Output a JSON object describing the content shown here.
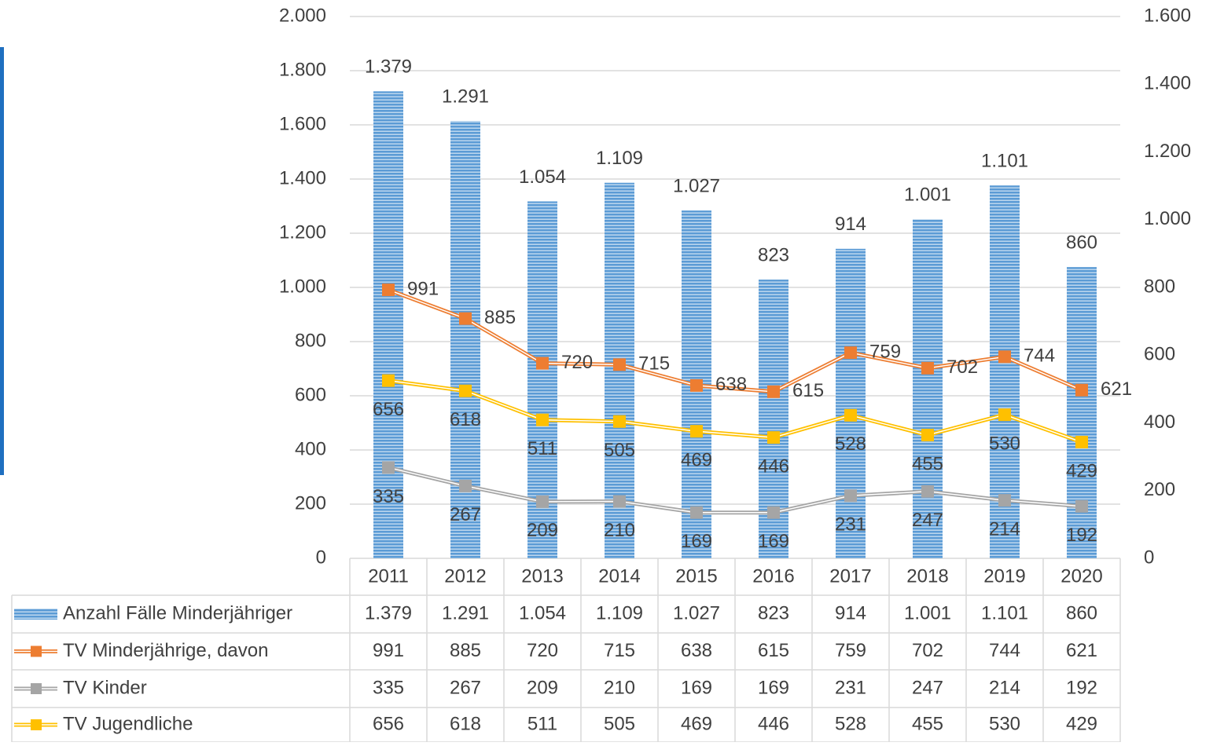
{
  "chart_data": {
    "type": "bar",
    "categories": [
      "2011",
      "2012",
      "2013",
      "2014",
      "2015",
      "2016",
      "2017",
      "2018",
      "2019",
      "2020"
    ],
    "ylim": [
      0,
      2000
    ],
    "yticks": [
      0,
      200,
      400,
      600,
      800,
      {
        "value": 1000,
        "label": "1.000"
      },
      {
        "value": 1200,
        "label": "1.200"
      },
      {
        "value": 1400,
        "label": "1.400"
      },
      {
        "value": 1600,
        "label": "1.600"
      },
      {
        "value": 1800,
        "label": "1.800"
      },
      {
        "value": 2000,
        "label": "2.000"
      }
    ],
    "y2lim": [
      0,
      1600
    ],
    "y2ticks": [
      0,
      200,
      400,
      600,
      800,
      {
        "value": 1000,
        "label": "1.000"
      },
      {
        "value": 1200,
        "label": "1.200"
      },
      {
        "value": 1400,
        "label": "1.400"
      },
      {
        "value": 1600,
        "label": "1.600"
      }
    ],
    "grid": true,
    "series": [
      {
        "name": "Anzahl Fälle Minderjähriger",
        "type": "bar",
        "axis": "y2",
        "color": "#5b9bd5",
        "values": [
          1379,
          1291,
          1054,
          1109,
          1027,
          823,
          914,
          1001,
          1101,
          860
        ],
        "value_labels": [
          "1.379",
          "1.291",
          "1.054",
          "1.109",
          "1.027",
          "823",
          "914",
          "1.001",
          "1.101",
          "860"
        ]
      },
      {
        "name": "TV Minderjährige, davon",
        "type": "line",
        "color": "#ed7d31",
        "values": [
          991,
          885,
          720,
          715,
          638,
          615,
          759,
          702,
          744,
          621
        ]
      },
      {
        "name": "TV Kinder",
        "type": "line",
        "color": "#a5a5a5",
        "values": [
          335,
          267,
          209,
          210,
          169,
          169,
          231,
          247,
          214,
          192
        ]
      },
      {
        "name": "TV Jugendliche",
        "type": "line",
        "color": "#ffc000",
        "values": [
          656,
          618,
          511,
          505,
          469,
          446,
          528,
          455,
          530,
          429
        ]
      }
    ]
  }
}
